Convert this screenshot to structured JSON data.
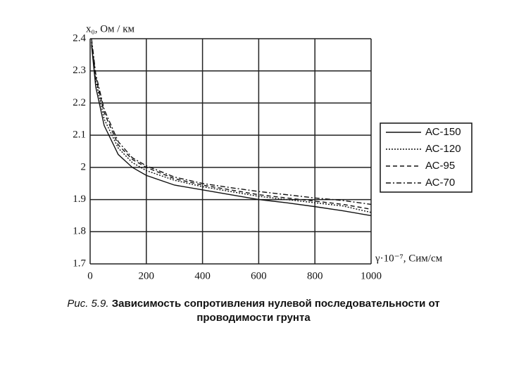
{
  "chart_data": {
    "type": "line",
    "y_label": "x₀, Ом / км",
    "x_label": "γ·10⁻⁷, Сим/см",
    "caption_prefix": "Рис. 5.9.",
    "caption_lines": [
      "Зависимость сопротивления нулевой последовательности от",
      "проводимости грунта"
    ],
    "x": [
      5,
      20,
      50,
      100,
      150,
      200,
      300,
      400,
      500,
      600,
      700,
      800,
      900,
      1000
    ],
    "series": [
      {
        "name": "АС-150",
        "color": "#111111",
        "dash": "solid",
        "values": [
          2.38,
          2.25,
          2.13,
          2.04,
          2.0,
          1.975,
          1.945,
          1.93,
          1.915,
          1.9,
          1.89,
          1.878,
          1.865,
          1.85
        ]
      },
      {
        "name": "АС-120",
        "color": "#111111",
        "dash": "dotted",
        "values": [
          2.39,
          2.27,
          2.15,
          2.06,
          2.015,
          1.99,
          1.96,
          1.94,
          1.925,
          1.91,
          1.9,
          1.89,
          1.88,
          1.86
        ]
      },
      {
        "name": "АС-95",
        "color": "#111111",
        "dash": "dashed",
        "values": [
          2.39,
          2.28,
          2.17,
          2.07,
          2.025,
          2.0,
          1.965,
          1.945,
          1.93,
          1.915,
          1.905,
          1.895,
          1.885,
          1.87
        ]
      },
      {
        "name": "АС-70",
        "color": "#111111",
        "dash": "dashdot",
        "values": [
          2.4,
          2.29,
          2.18,
          2.08,
          2.03,
          2.005,
          1.97,
          1.95,
          1.937,
          1.925,
          1.915,
          1.905,
          1.897,
          1.885
        ]
      }
    ],
    "xlim": [
      0,
      1000
    ],
    "xticks": [
      0,
      200,
      400,
      600,
      800,
      1000
    ],
    "ylim": [
      1.7,
      2.4
    ],
    "yticks": [
      1.7,
      1.8,
      1.9,
      2,
      2.1,
      2.2,
      2.3,
      2.4
    ],
    "grid": true,
    "legend": "right"
  }
}
